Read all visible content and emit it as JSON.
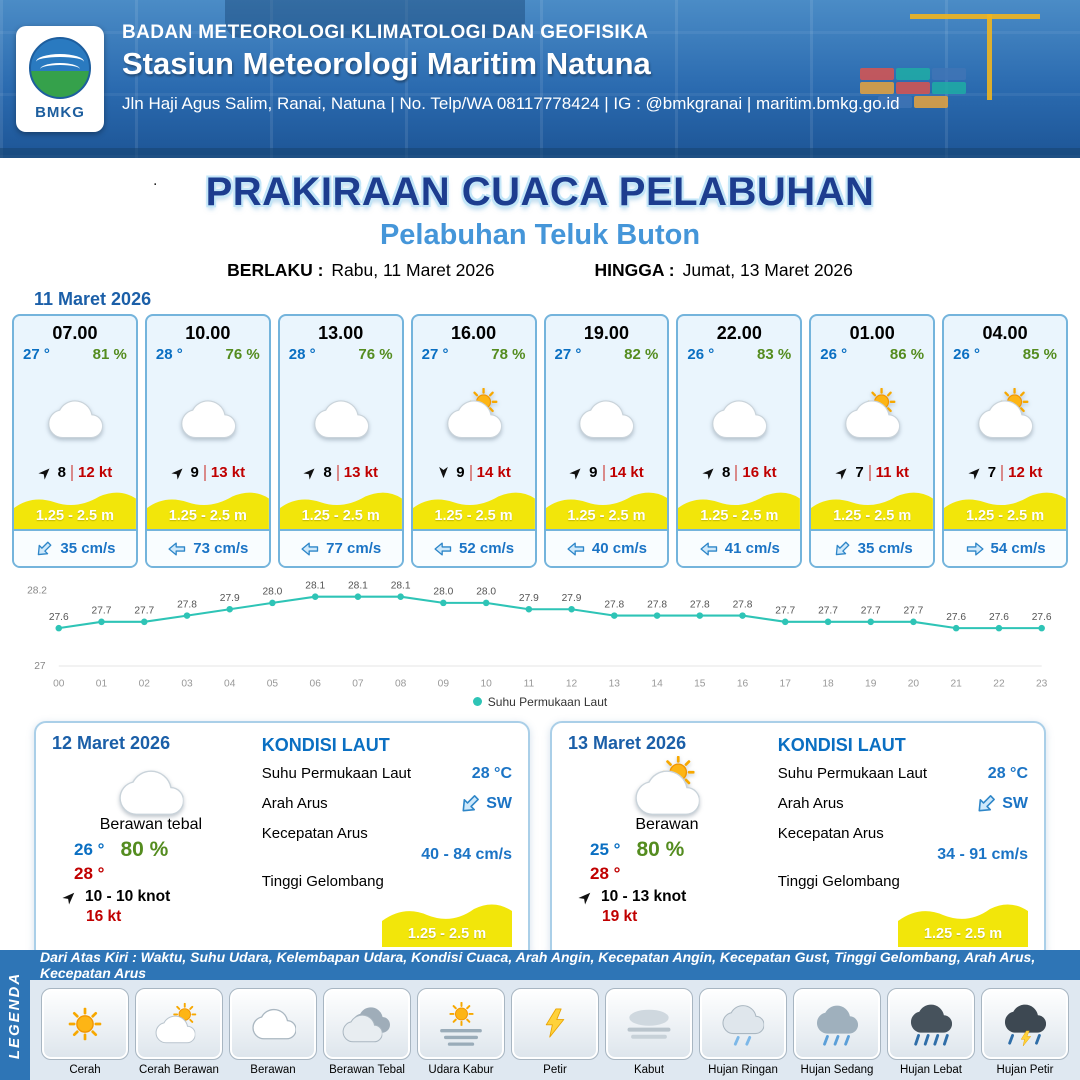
{
  "header": {
    "agency": "BADAN METEOROLOGI KLIMATOLOGI DAN GEOFISIKA",
    "station": "Stasiun Meteorologi Maritim Natuna",
    "contact": "Jln Haji Agus Salim, Ranai, Natuna  | No. Telp/WA 08117778424 | IG : @bmkgranai | maritim.bmkg.go.id",
    "logo_text": "BMKG"
  },
  "title": {
    "main": "PRAKIRAAN CUACA PELABUHAN",
    "subtitle": "Pelabuhan Teluk Buton",
    "stray": "."
  },
  "period": {
    "berlaku_label": "BERLAKU :",
    "berlaku_value": "Rabu, 11 Maret 2026",
    "hingga_label": "HINGGA :",
    "hingga_value": "Jumat, 13 Maret 2026"
  },
  "forecast_date": "11 Maret 2026",
  "forecast_cards": [
    {
      "time": "07.00",
      "temp": "27 °",
      "humidity": "81 %",
      "icon": "cloudy",
      "wind_dir": "NE",
      "wind_speed": "8",
      "gust": "12 kt",
      "wave_height": "1.25 - 2.5 m",
      "current_dir": "SW",
      "current_speed": "35 cm/s"
    },
    {
      "time": "10.00",
      "temp": "28 °",
      "humidity": "76 %",
      "icon": "cloudy",
      "wind_dir": "NE",
      "wind_speed": "9",
      "gust": "13 kt",
      "wave_height": "1.25 - 2.5 m",
      "current_dir": "W",
      "current_speed": "73 cm/s"
    },
    {
      "time": "13.00",
      "temp": "28 °",
      "humidity": "76 %",
      "icon": "cloudy",
      "wind_dir": "NE",
      "wind_speed": "8",
      "gust": "13 kt",
      "wave_height": "1.25 - 2.5 m",
      "current_dir": "W",
      "current_speed": "77 cm/s"
    },
    {
      "time": "16.00",
      "temp": "27 °",
      "humidity": "78 %",
      "icon": "partly-sunny",
      "wind_dir": "S",
      "wind_speed": "9",
      "gust": "14 kt",
      "wave_height": "1.25 - 2.5 m",
      "current_dir": "W",
      "current_speed": "52 cm/s"
    },
    {
      "time": "19.00",
      "temp": "27 °",
      "humidity": "82 %",
      "icon": "cloudy",
      "wind_dir": "NE",
      "wind_speed": "9",
      "gust": "14 kt",
      "wave_height": "1.25 - 2.5 m",
      "current_dir": "W",
      "current_speed": "40 cm/s"
    },
    {
      "time": "22.00",
      "temp": "26 °",
      "humidity": "83 %",
      "icon": "cloudy",
      "wind_dir": "NE",
      "wind_speed": "8",
      "gust": "16 kt",
      "wave_height": "1.25 - 2.5 m",
      "current_dir": "W",
      "current_speed": "41 cm/s"
    },
    {
      "time": "01.00",
      "temp": "26 °",
      "humidity": "86 %",
      "icon": "partly-sunny",
      "wind_dir": "NE",
      "wind_speed": "7",
      "gust": "11 kt",
      "wave_height": "1.25 - 2.5 m",
      "current_dir": "SW",
      "current_speed": "35 cm/s"
    },
    {
      "time": "04.00",
      "temp": "26 °",
      "humidity": "85 %",
      "icon": "partly-sunny",
      "wind_dir": "NE",
      "wind_speed": "7",
      "gust": "12 kt",
      "wave_height": "1.25 - 2.5 m",
      "current_dir": "E",
      "current_speed": "54 cm/s"
    }
  ],
  "chart_data": {
    "type": "line",
    "x": [
      "00",
      "01",
      "02",
      "03",
      "04",
      "05",
      "06",
      "07",
      "08",
      "09",
      "10",
      "11",
      "12",
      "13",
      "14",
      "15",
      "16",
      "17",
      "18",
      "19",
      "20",
      "21",
      "22",
      "23"
    ],
    "values": [
      27.6,
      27.7,
      27.7,
      27.8,
      27.9,
      28.0,
      28.1,
      28.1,
      28.1,
      28.0,
      28.0,
      27.9,
      27.9,
      27.8,
      27.8,
      27.8,
      27.8,
      27.7,
      27.7,
      27.7,
      27.7,
      27.6,
      27.6,
      27.6
    ],
    "ylim": [
      27,
      28.2
    ],
    "y_ticks": [
      "28.2",
      "27"
    ],
    "xlabel": "",
    "ylabel": "",
    "legend": "Suhu Permukaan Laut",
    "legend_position": "bottom",
    "grid": false,
    "line_color": "#2ec4b6"
  },
  "daily_cards": [
    {
      "date": "12 Maret 2026",
      "icon": "cloudy",
      "condition": "Berawan tebal",
      "temp_min": "26 °",
      "humidity": "80 %",
      "temp_max": "28 °",
      "wind_dir": "NE",
      "wind": "10 - 10 knot",
      "gust": "16 kt",
      "sea": {
        "title": "KONDISI LAUT",
        "sst_label": "Suhu Permukaan Laut",
        "sst": "28 °C",
        "current_dir_label": "Arah Arus",
        "current_dir": "SW",
        "current_speed_label": "Kecepatan Arus",
        "current_speed": "40 - 84 cm/s",
        "wave_label": "Tinggi Gelombang",
        "wave": "1.25 - 2.5 m"
      }
    },
    {
      "date": "13 Maret 2026",
      "icon": "partly-sunny",
      "condition": "Berawan",
      "temp_min": "25 °",
      "humidity": "80 %",
      "temp_max": "28 °",
      "wind_dir": "NE",
      "wind": "10 - 13 knot",
      "gust": "19 kt",
      "sea": {
        "title": "KONDISI LAUT",
        "sst_label": "Suhu Permukaan Laut",
        "sst": "28 °C",
        "current_dir_label": "Arah Arus",
        "current_dir": "SW",
        "current_speed_label": "Kecepatan Arus",
        "current_speed": "34 - 91 cm/s",
        "wave_label": "Tinggi Gelombang",
        "wave": "1.25 - 2.5 m"
      }
    }
  ],
  "legend": {
    "sidebar": "LEGENDA",
    "strip": "Dari Atas Kiri : Waktu, Suhu Udara, Kelembapan Udara, Kondisi Cuaca, Arah Angin, Kecepatan Angin, Kecepatan Gust, Tinggi Gelombang, Arah Arus, Kecepatan Arus",
    "items": [
      {
        "label": "Cerah",
        "icon": "sun"
      },
      {
        "label": "Cerah Berawan",
        "icon": "sun-cloud"
      },
      {
        "label": "Berawan",
        "icon": "cloud"
      },
      {
        "label": "Berawan Tebal",
        "icon": "thick-cloud"
      },
      {
        "label": "Udara Kabur",
        "icon": "haze"
      },
      {
        "label": "Petir",
        "icon": "lightning"
      },
      {
        "label": "Kabut",
        "icon": "fog"
      },
      {
        "label": "Hujan Ringan",
        "icon": "light-rain"
      },
      {
        "label": "Hujan Sedang",
        "icon": "moderate-rain"
      },
      {
        "label": "Hujan Lebat",
        "icon": "heavy-rain"
      },
      {
        "label": "Hujan Petir",
        "icon": "thunderstorm"
      }
    ]
  },
  "colors": {
    "header_blue": "#2b6bb0",
    "title_navy": "#1d3d8f",
    "subtitle_blue": "#4596d9",
    "temp_blue": "#0a6fc2",
    "humidity_green": "#548c1f",
    "gust_red": "#c00000",
    "wave_yellow": "#f2e60a",
    "current_blue": "#1b74c5",
    "legend_bar_blue": "#2e75b6",
    "chart_line_teal": "#2ec4b6"
  }
}
